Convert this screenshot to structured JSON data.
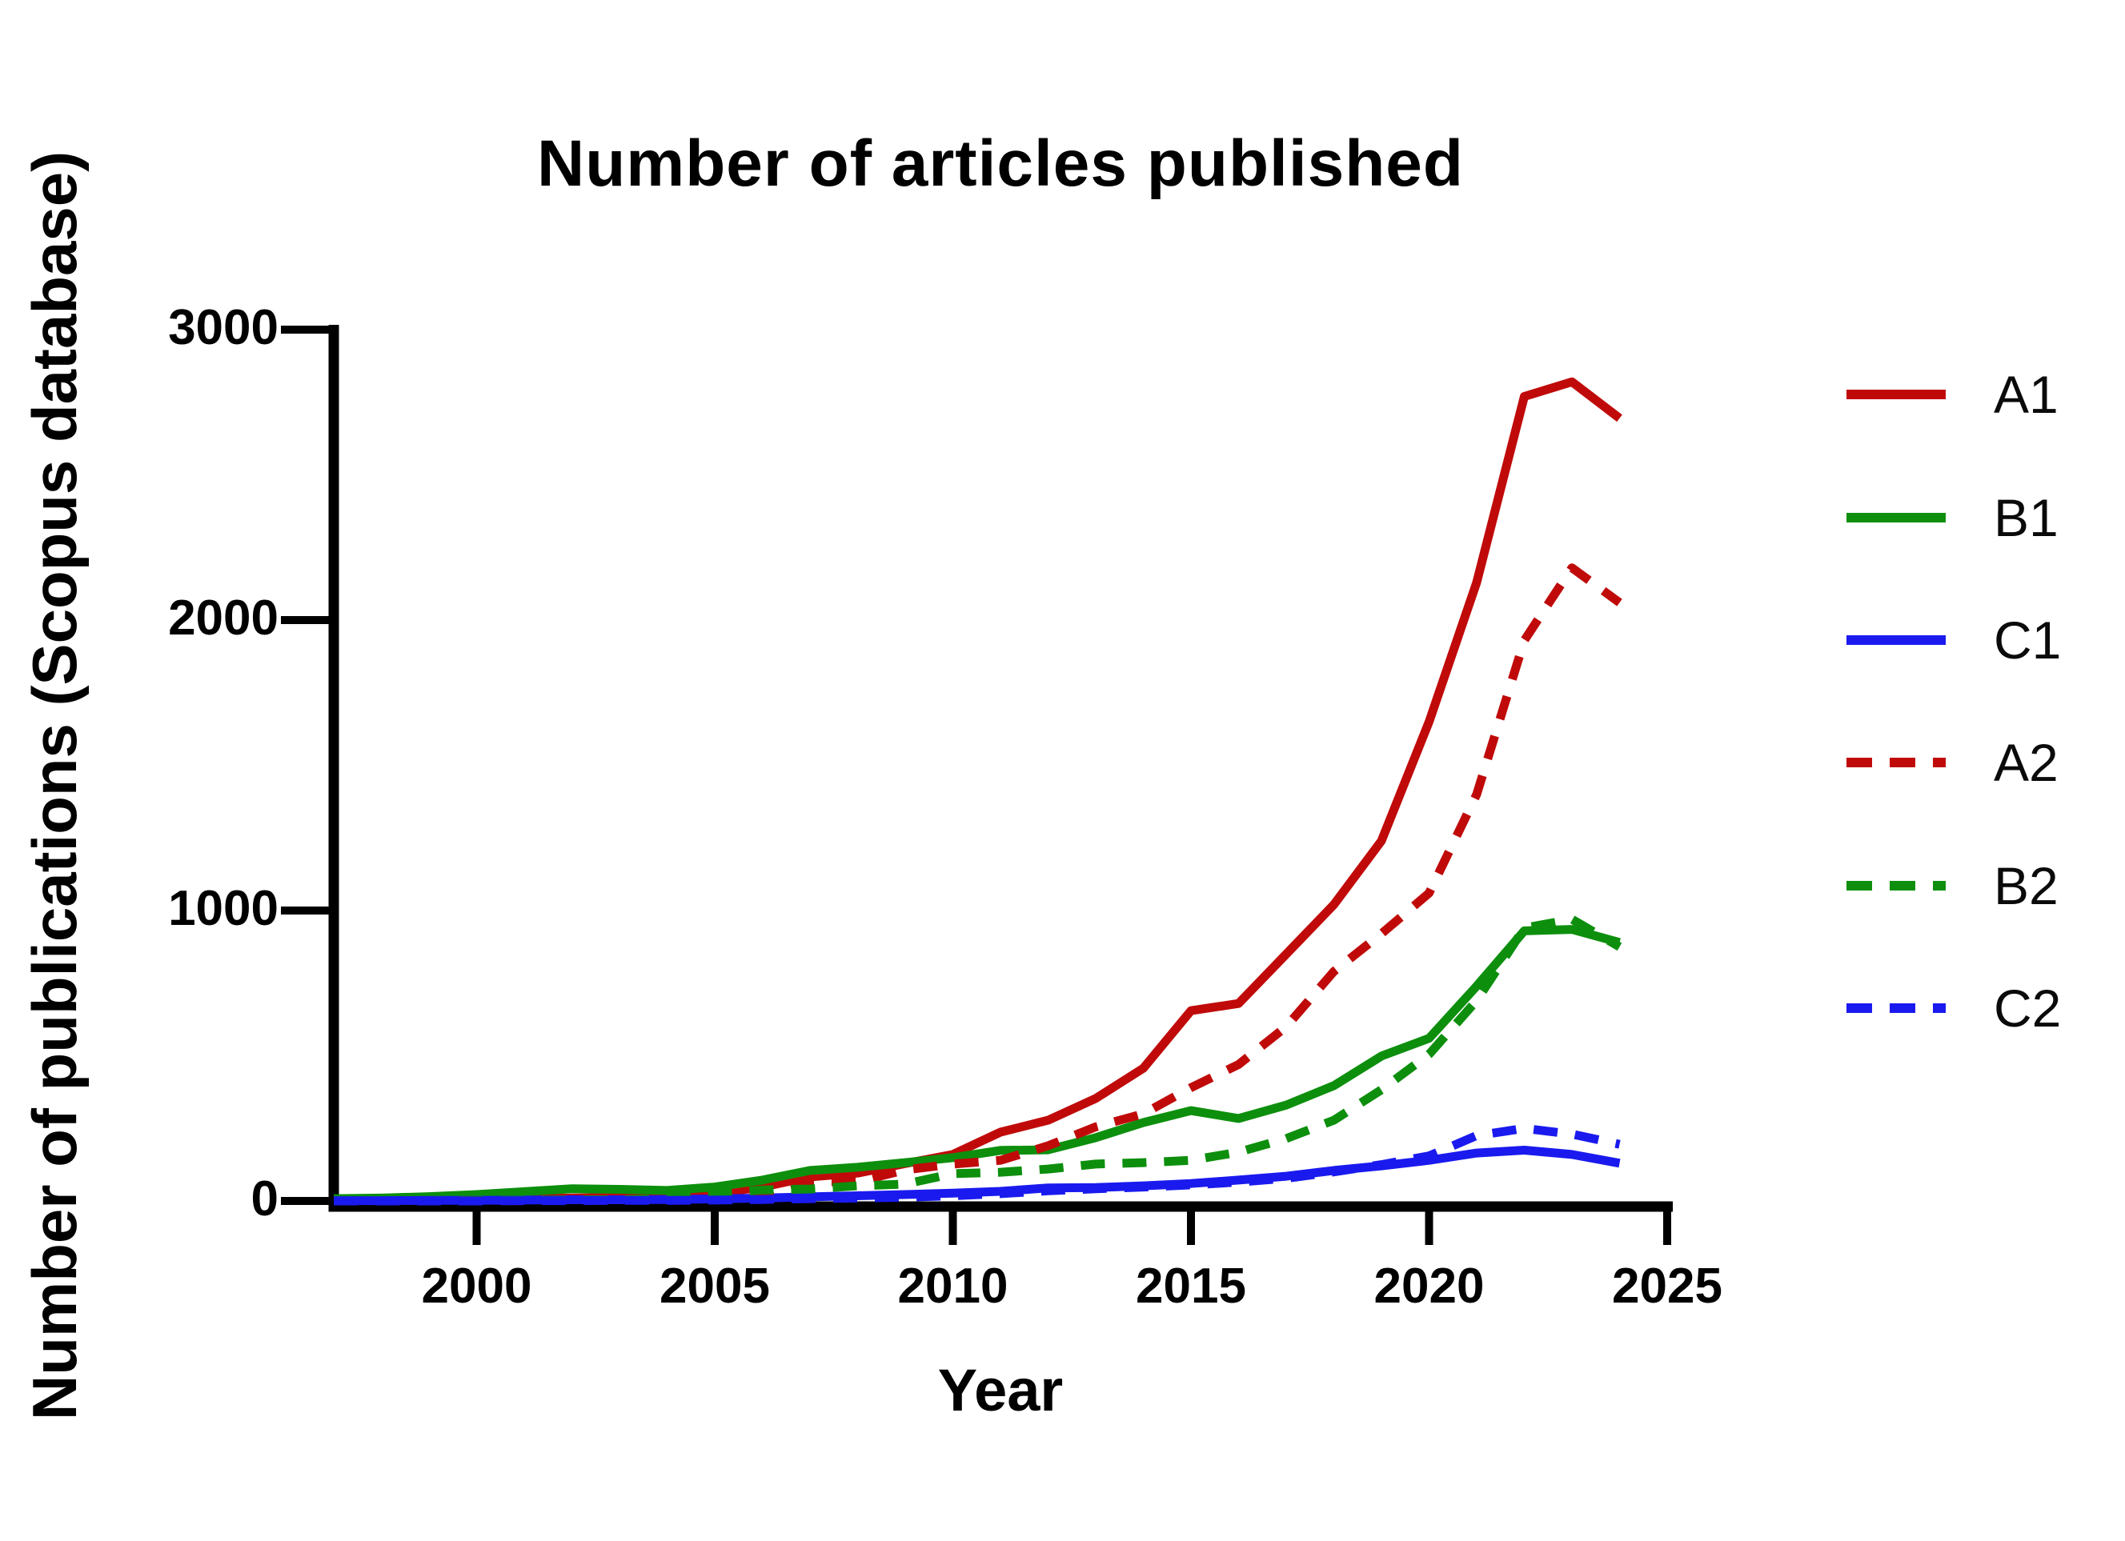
{
  "title": "Number of articles published",
  "x_axis": {
    "label": "Year",
    "ticks": [
      2000,
      2005,
      2010,
      2015,
      2020,
      2025
    ]
  },
  "y_axis": {
    "label": "Number of publications (Scopus database)",
    "ticks": [
      0,
      1000,
      2000,
      3000
    ]
  },
  "colors": {
    "red": "#C00A0A",
    "green": "#0D8F0D",
    "blue": "#1A1AEF",
    "axis": "#000000",
    "background": "#FFFFFF"
  },
  "chart_data": {
    "type": "line",
    "title": "Number of articles published",
    "xlabel": "Year",
    "ylabel": "Number of publications (Scopus database)",
    "xlim": [
      1997,
      2025
    ],
    "ylim": [
      0,
      3000
    ],
    "grid": false,
    "legend_position": "right",
    "x": [
      1997,
      1998,
      1999,
      2000,
      2001,
      2002,
      2003,
      2004,
      2005,
      2006,
      2007,
      2008,
      2009,
      2010,
      2011,
      2012,
      2013,
      2014,
      2015,
      2016,
      2017,
      2018,
      2019,
      2020,
      2021,
      2022,
      2023,
      2024
    ],
    "series": [
      {
        "name": "A1",
        "color": "#C00A0A",
        "style": "solid",
        "values": [
          2,
          3,
          4,
          6,
          8,
          10,
          12,
          16,
          25,
          48,
          83,
          96,
          129,
          160,
          237,
          278,
          353,
          457,
          655,
          680,
          850,
          1020,
          1240,
          1650,
          2130,
          2770,
          2820,
          2695
        ]
      },
      {
        "name": "B1",
        "color": "#0D8F0D",
        "style": "solid",
        "values": [
          8,
          10,
          15,
          22,
          32,
          42,
          40,
          36,
          48,
          72,
          105,
          116,
          132,
          149,
          174,
          176,
          218,
          270,
          311,
          284,
          330,
          397,
          499,
          560,
          740,
          930,
          935,
          890
        ]
      },
      {
        "name": "C1",
        "color": "#1A1AEF",
        "style": "solid",
        "values": [
          1,
          1,
          2,
          2,
          3,
          4,
          4,
          5,
          7,
          10,
          14,
          18,
          22,
          27,
          33,
          45,
          46,
          52,
          60,
          72,
          85,
          105,
          121,
          140,
          165,
          175,
          160,
          130
        ]
      },
      {
        "name": "A2",
        "color": "#C00A0A",
        "style": "dashed",
        "values": [
          0,
          0,
          0,
          1,
          1,
          2,
          3,
          5,
          10,
          28,
          66,
          66,
          107,
          127,
          140,
          190,
          255,
          300,
          390,
          470,
          600,
          790,
          920,
          1060,
          1400,
          1930,
          2180,
          2060
        ]
      },
      {
        "name": "B2",
        "color": "#0D8F0D",
        "style": "dashed",
        "values": [
          0,
          0,
          0,
          1,
          2,
          3,
          4,
          8,
          25,
          38,
          41,
          52,
          58,
          94,
          99,
          110,
          127,
          132,
          140,
          168,
          215,
          278,
          383,
          505,
          690,
          940,
          970,
          875
        ]
      },
      {
        "name": "C2",
        "color": "#1A1AEF",
        "style": "dashed",
        "values": [
          0,
          0,
          0,
          0,
          1,
          1,
          2,
          2,
          3,
          5,
          8,
          10,
          13,
          18,
          25,
          35,
          42,
          48,
          55,
          65,
          78,
          100,
          125,
          155,
          225,
          250,
          230,
          195
        ]
      }
    ]
  }
}
